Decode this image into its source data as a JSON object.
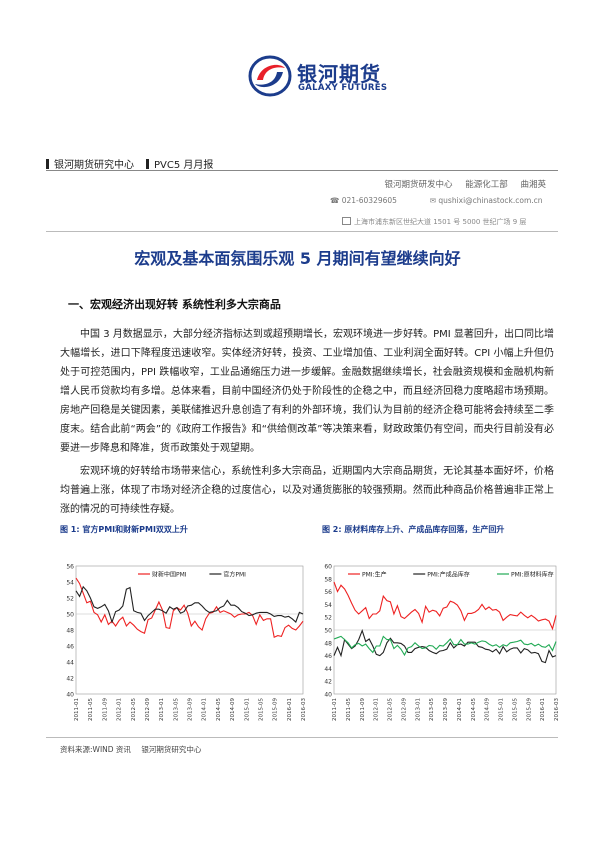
{
  "logo": {
    "cn": "银河期货",
    "en": "GALAXY FUTURES"
  },
  "header": {
    "org": "银河期货研究中心",
    "report": "PVC5 月月报"
  },
  "author": {
    "dept": "银河期货研发中心",
    "team": "能源化工部",
    "name": "曲湘英"
  },
  "contact": {
    "phone": "021-60329605",
    "email": "qushixi@chinastock.com.cn"
  },
  "address": "上海市浦东新区世纪大道 1501 号 5000 世纪广场 9 层",
  "title": "宏观及基本面氛围乐观  5 月期间有望继续向好",
  "section1": "一、宏观经济出现好转  系统性利多大宗商品",
  "paragraphs": [
    "中国 3 月数据显示，大部分经济指标达到或超预期增长，宏观环境进一步好转。PMI 显著回升，出口同比增大幅增长，进口下降程度迅速收窄。实体经济好转，投资、工业增加值、工业利润全面好转。CPI 小幅上升但仍处于可控范围内，PPI 跌幅收窄，工业品通缩压力进一步缓解。金融数据继续增长，社会融资规模和金融机构新增人民币贷款均有多增。总体来看，目前中国经济仍处于阶段性的企稳之中，而且经济回稳力度略超市场预期。房地产回稳是关键因素，美联储推迟升息创造了有利的外部环境，我们认为目前的经济企稳可能将会持续至二季度末。结合此前“两会”的《政府工作报告》和“供给侧改革”等决策来看，财政政策仍有空间，而央行目前没有必要进一步降息和降准，货币政策处于观望期。",
    "宏观环境的好转给市场带来信心，系统性利多大宗商品，近期国内大宗商品期货，无论其基本面好坏，价格均普遍上涨，体现了市场对经济企稳的过度信心，以及对通货膨胀的较强预期。然而此种商品价格普遍非正常上涨的情况的可持续性存疑。"
  ],
  "figures": [
    {
      "caption": "图 1: 官方PMI和财新PMI双双上升"
    },
    {
      "caption": "图 2: 原材料库存上升、产成品库存回落，生产回升"
    }
  ],
  "chart_data": [
    {
      "type": "line",
      "ylim": [
        40,
        56
      ],
      "yticks": [
        "56",
        "54",
        "52",
        "50",
        "48",
        "46",
        "44",
        "42",
        "40"
      ],
      "xticks": [
        "2011-01",
        "2011-05",
        "2011-09",
        "2012-01",
        "2012-05",
        "2012-09",
        "2013-01",
        "2013-05",
        "2013-09",
        "2014-01",
        "2014-05",
        "2014-09",
        "2015-01",
        "2015-05",
        "2015-09",
        "2016-01",
        "2016-03"
      ],
      "series": [
        {
          "name": "财新中国PMI",
          "color": "#ee2222",
          "values": [
            54.5,
            53.8,
            52.6,
            51.4,
            51.6,
            50.2,
            49.9,
            49.0,
            49.9,
            48.7,
            49.1,
            48.5,
            49.2,
            49.6,
            48.5,
            49.0,
            48.6,
            48.1,
            47.8,
            47.6,
            49.3,
            49.5,
            50.5,
            51.5,
            50.5,
            48.3,
            48.2,
            50.4,
            50.8,
            50.5,
            51.1,
            50.1,
            48.5,
            49.1,
            48.4,
            48.0,
            49.4,
            50.1,
            50.2,
            50.9,
            50.2,
            50.4,
            50.2,
            50.0,
            49.6,
            49.9,
            50.0,
            50.0,
            50.2,
            49.8,
            48.7,
            49.9,
            49.2,
            49.4,
            49.4,
            47.1,
            47.3,
            47.2,
            48.3,
            48.6,
            48.2,
            48.0,
            48.5,
            49.1
          ]
        },
        {
          "name": "官方PMI",
          "color": "#222222",
          "values": [
            52.9,
            52.2,
            53.4,
            52.9,
            52.0,
            50.9,
            50.7,
            50.9,
            51.2,
            50.4,
            49.0,
            50.3,
            50.5,
            51.0,
            53.1,
            53.3,
            50.4,
            50.2,
            50.1,
            49.2,
            49.8,
            50.2,
            50.6,
            50.6,
            50.4,
            50.1,
            50.9,
            50.6,
            50.8,
            50.1,
            50.3,
            51.0,
            51.1,
            51.4,
            51.4,
            51.0,
            50.5,
            50.2,
            50.3,
            50.4,
            50.8,
            51.0,
            51.7,
            51.1,
            51.1,
            50.8,
            50.3,
            50.1,
            49.8,
            49.9,
            50.1,
            50.2,
            50.2,
            50.2,
            50.0,
            49.7,
            49.8,
            49.8,
            49.6,
            49.7,
            49.4,
            49.0,
            50.2,
            50.0
          ]
        }
      ]
    },
    {
      "type": "line",
      "ylim": [
        40,
        60
      ],
      "yticks": [
        "60",
        "58",
        "56",
        "54",
        "52",
        "50",
        "48",
        "46",
        "44",
        "42",
        "40"
      ],
      "xticks": [
        "2011-01",
        "2011-05",
        "2011-09",
        "2012-01",
        "2012-05",
        "2012-09",
        "2013-01",
        "2013-05",
        "2013-09",
        "2014-01",
        "2014-05",
        "2014-09",
        "2015-01",
        "2015-05",
        "2015-09",
        "2016-01",
        "2016-03"
      ],
      "series": [
        {
          "name": "PMI:生产",
          "color": "#ee2222",
          "values": [
            57.5,
            56.0,
            57.0,
            56.4,
            55.4,
            54.2,
            53.1,
            52.5,
            53.0,
            53.5,
            51.8,
            52.5,
            52.5,
            53.0,
            55.3,
            54.6,
            54.4,
            52.5,
            53.8,
            52.1,
            51.8,
            52.3,
            52.8,
            53.2,
            52.6,
            51.2,
            53.7,
            52.8,
            53.1,
            52.9,
            52.2,
            53.4,
            53.6,
            54.5,
            54.3,
            53.9,
            53.0,
            51.5,
            52.6,
            52.6,
            52.8,
            53.2,
            54.0,
            53.2,
            53.6,
            53.1,
            53.2,
            52.8,
            51.5,
            52.0,
            52.4,
            52.3,
            52.2,
            52.8,
            52.3,
            51.9,
            52.3,
            51.9,
            51.4,
            51.6,
            51.7,
            51.4,
            50.2,
            52.3
          ]
        },
        {
          "name": "PMI:产成品库存",
          "color": "#222222",
          "values": [
            46.0,
            47.3,
            46.0,
            48.5,
            47.8,
            47.1,
            47.5,
            48.5,
            49.9,
            48.2,
            48.6,
            47.5,
            46.2,
            46.0,
            46.5,
            48.0,
            48.7,
            48.0,
            48.0,
            47.9,
            47.5,
            46.5,
            46.5,
            47.1,
            47.3,
            47.4,
            47.3,
            46.8,
            46.5,
            46.3,
            46.7,
            46.8,
            47.0,
            48.0,
            47.2,
            47.7,
            47.8,
            47.5,
            48.1,
            48.1,
            48.1,
            47.4,
            47.3,
            47.0,
            46.9,
            46.6,
            47.0,
            46.3,
            47.4,
            46.6,
            47.0,
            47.2,
            47.2,
            46.4,
            47.1,
            46.9,
            46.4,
            46.5,
            46.3,
            45.1,
            44.9,
            46.8,
            45.8,
            46.0
          ]
        },
        {
          "name": "PMI:原材料库存",
          "color": "#22aa55",
          "values": [
            48.6,
            48.8,
            49.0,
            48.5,
            48.0,
            47.2,
            47.7,
            47.9,
            47.5,
            47.8,
            47.1,
            46.5,
            47.5,
            47.5,
            49.0,
            48.5,
            48.5,
            47.1,
            47.6,
            47.0,
            46.1,
            47.2,
            47.4,
            48.0,
            47.5,
            47.1,
            47.2,
            47.6,
            47.5,
            47.0,
            47.6,
            47.5,
            48.0,
            48.6,
            47.7,
            47.7,
            48.5,
            47.8,
            47.8,
            48.0,
            47.8,
            48.1,
            48.3,
            48.2,
            47.8,
            47.5,
            47.7,
            47.3,
            47.7,
            47.5,
            48.0,
            48.1,
            48.2,
            48.4,
            47.8,
            47.7,
            47.9,
            47.5,
            47.8,
            47.4,
            47.3,
            47.7,
            46.8,
            48.2
          ]
        }
      ]
    }
  ],
  "footer": {
    "source": "资料来源:WIND 资讯",
    "org": "银河期货研究中心"
  }
}
